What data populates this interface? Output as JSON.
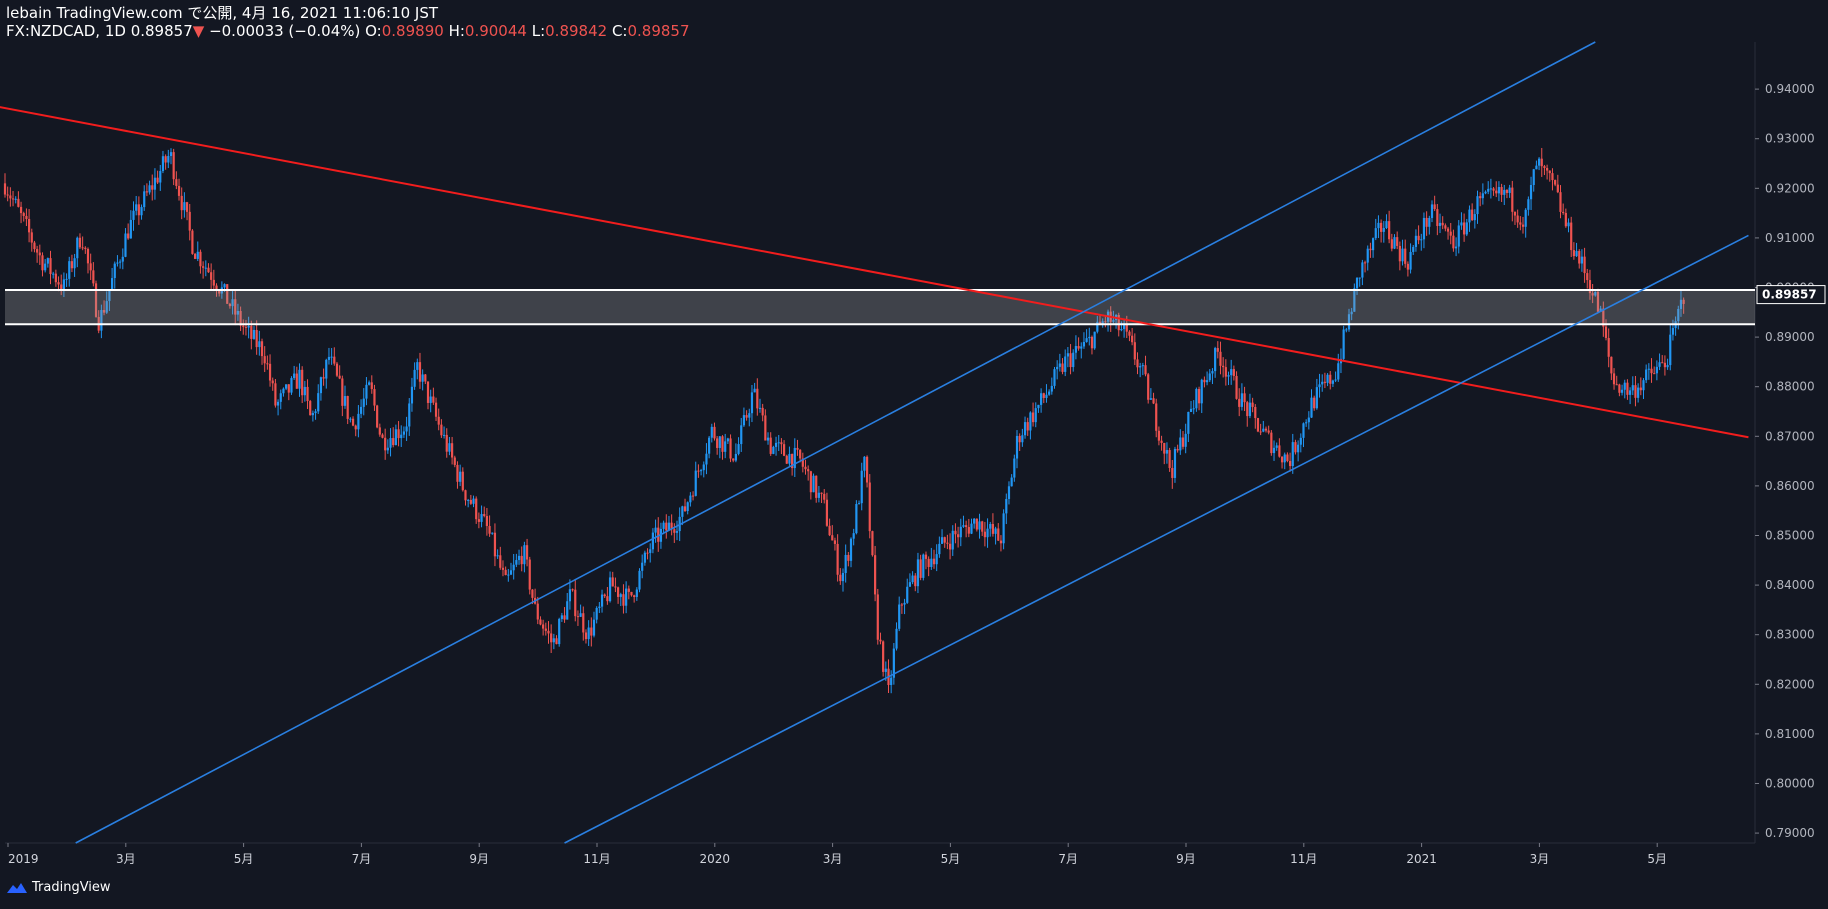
{
  "header": {
    "title": "lebain TradingView.com で公開, 4月 16, 2021 11:06:10 JST",
    "symbol": "FX:NZDCAD, 1D",
    "last": "0.89857",
    "change_arrow": "▼",
    "change": "−0.00033 (−0.04%)",
    "o_label": "O:",
    "o_value": "0.89890",
    "h_label": "H:",
    "h_value": "0.90044",
    "l_label": "L:",
    "l_value": "0.89842",
    "c_label": "C:",
    "c_value": "0.89857"
  },
  "footer": {
    "brand": "TradingView",
    "logo_icon": "tradingview-logo-icon"
  },
  "colors": {
    "background": "#131722",
    "up": "#2196f3",
    "down": "#ef5350",
    "trend_red": "#f21d1d",
    "trend_blue": "#2a7fe0",
    "zone": "#9e9e9e"
  },
  "chart_data": {
    "type": "candlestick",
    "title": "FX:NZDCAD, 1D",
    "xlabel": "",
    "ylabel": "",
    "ylim": [
      0.788,
      0.9495
    ],
    "y_ticks": [
      0.94,
      0.93,
      0.92,
      0.91,
      0.9,
      0.89,
      0.88,
      0.87,
      0.86,
      0.85,
      0.84,
      0.83,
      0.82,
      0.81,
      0.8,
      0.79
    ],
    "y_tick_labels": [
      "0.94000",
      "0.93000",
      "0.92000",
      "0.91000",
      "0.90000",
      "0.89000",
      "0.88000",
      "0.87000",
      "0.86000",
      "0.85000",
      "0.84000",
      "0.83000",
      "0.82000",
      "0.81000",
      "0.80000",
      "0.79000"
    ],
    "x_tick_labels": [
      "2019",
      "3月",
      "5月",
      "7月",
      "9月",
      "11月",
      "2020",
      "3月",
      "5月",
      "7月",
      "9月",
      "11月",
      "2021",
      "3月",
      "5月"
    ],
    "x_tick_months": [
      0,
      2,
      4,
      6,
      8,
      10,
      12,
      14,
      16,
      18,
      20,
      22,
      24,
      26,
      28
    ],
    "current_price": 0.89857,
    "current_price_label": "0.89857",
    "zone": [
      0.8926,
      0.8995
    ],
    "trendlines": [
      {
        "name": "red-resistance-line",
        "color": "red",
        "points": [
          [
            -0.1,
            0.9364
          ],
          [
            29.6,
            0.8698
          ]
        ]
      },
      {
        "name": "blue-channel-upper-line",
        "color": "blue",
        "points": [
          [
            1.2,
            0.788
          ],
          [
            27.0,
            0.9495
          ]
        ]
      },
      {
        "name": "blue-channel-lower-line",
        "color": "blue",
        "points": [
          [
            9.5,
            0.788
          ],
          [
            29.6,
            0.9105
          ]
        ]
      }
    ],
    "price_path": [
      [
        0.0,
        0.921
      ],
      [
        0.6,
        0.906
      ],
      [
        1.0,
        0.9
      ],
      [
        1.3,
        0.911
      ],
      [
        1.6,
        0.893
      ],
      [
        2.1,
        0.912
      ],
      [
        2.8,
        0.927
      ],
      [
        3.2,
        0.908
      ],
      [
        3.6,
        0.901
      ],
      [
        4.1,
        0.891
      ],
      [
        4.4,
        0.887
      ],
      [
        4.6,
        0.876
      ],
      [
        5.0,
        0.882
      ],
      [
        5.2,
        0.873
      ],
      [
        5.5,
        0.886
      ],
      [
        5.9,
        0.872
      ],
      [
        6.2,
        0.88
      ],
      [
        6.4,
        0.869
      ],
      [
        6.8,
        0.872
      ],
      [
        7.0,
        0.884
      ],
      [
        7.4,
        0.871
      ],
      [
        7.8,
        0.859
      ],
      [
        8.2,
        0.851
      ],
      [
        8.5,
        0.84
      ],
      [
        8.8,
        0.847
      ],
      [
        9.0,
        0.835
      ],
      [
        9.3,
        0.828
      ],
      [
        9.6,
        0.838
      ],
      [
        9.9,
        0.83
      ],
      [
        10.3,
        0.84
      ],
      [
        10.6,
        0.837
      ],
      [
        11.0,
        0.849
      ],
      [
        11.5,
        0.854
      ],
      [
        12.0,
        0.871
      ],
      [
        12.4,
        0.866
      ],
      [
        12.7,
        0.879
      ],
      [
        13.0,
        0.868
      ],
      [
        13.5,
        0.865
      ],
      [
        13.9,
        0.856
      ],
      [
        14.2,
        0.841
      ],
      [
        14.4,
        0.851
      ],
      [
        14.6,
        0.865
      ],
      [
        14.8,
        0.832
      ],
      [
        15.0,
        0.818
      ],
      [
        15.2,
        0.836
      ],
      [
        15.5,
        0.843
      ],
      [
        16.0,
        0.849
      ],
      [
        16.5,
        0.853
      ],
      [
        16.9,
        0.849
      ],
      [
        17.2,
        0.87
      ],
      [
        17.6,
        0.877
      ],
      [
        18.0,
        0.885
      ],
      [
        18.4,
        0.889
      ],
      [
        18.7,
        0.894
      ],
      [
        19.0,
        0.891
      ],
      [
        19.3,
        0.883
      ],
      [
        19.8,
        0.863
      ],
      [
        20.2,
        0.877
      ],
      [
        20.6,
        0.887
      ],
      [
        21.0,
        0.877
      ],
      [
        21.4,
        0.87
      ],
      [
        21.8,
        0.865
      ],
      [
        22.2,
        0.877
      ],
      [
        22.6,
        0.883
      ],
      [
        23.0,
        0.903
      ],
      [
        23.4,
        0.913
      ],
      [
        23.8,
        0.905
      ],
      [
        24.2,
        0.915
      ],
      [
        24.6,
        0.909
      ],
      [
        25.0,
        0.917
      ],
      [
        25.5,
        0.919
      ],
      [
        25.8,
        0.913
      ],
      [
        26.0,
        0.925
      ],
      [
        26.3,
        0.92
      ],
      [
        26.6,
        0.909
      ],
      [
        26.9,
        0.901
      ],
      [
        27.1,
        0.894
      ],
      [
        27.3,
        0.881
      ],
      [
        27.6,
        0.879
      ],
      [
        27.9,
        0.882
      ],
      [
        28.2,
        0.885
      ],
      [
        28.5,
        0.8986
      ]
    ]
  }
}
